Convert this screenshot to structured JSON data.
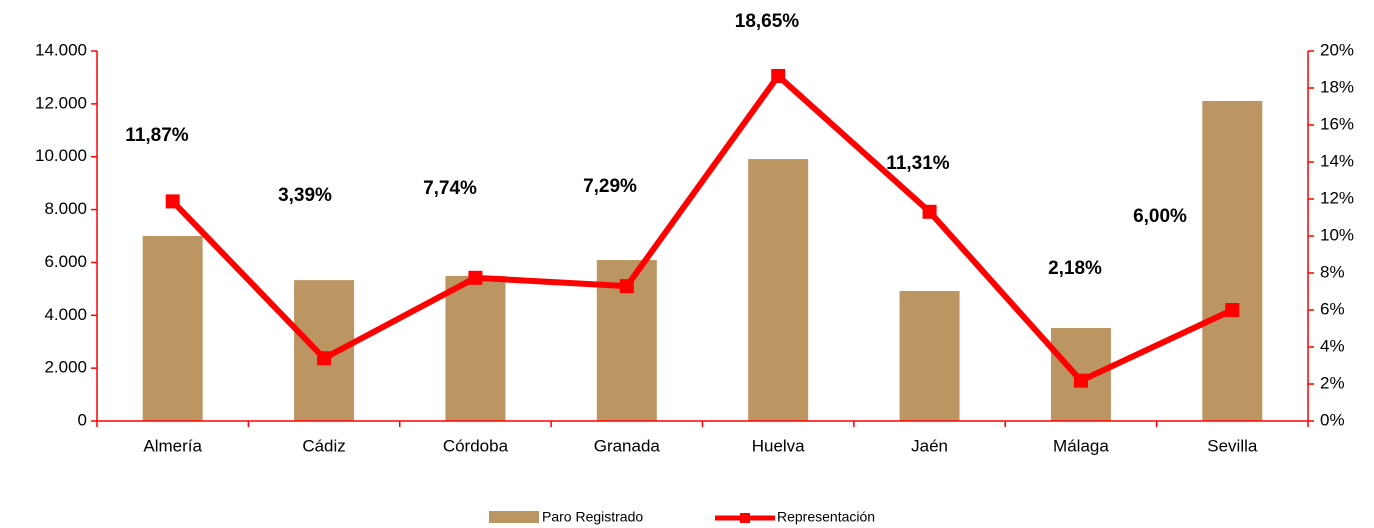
{
  "chart_data": {
    "type": "bar-line",
    "categories": [
      "Almería",
      "Cádiz",
      "Córdoba",
      "Granada",
      "Huelva",
      "Jaén",
      "Málaga",
      "Sevilla"
    ],
    "series": [
      {
        "name": "Paro Registrado",
        "type": "bar",
        "color": "#bb9663",
        "values": [
          7000,
          5330,
          5490,
          6090,
          9910,
          4920,
          3520,
          12110
        ]
      },
      {
        "name": "Representación",
        "type": "line",
        "axis": "y2",
        "color": "#ff0000",
        "values": [
          11.87,
          3.39,
          7.74,
          7.29,
          18.65,
          11.31,
          2.18,
          6.0
        ],
        "value_labels": [
          "11,87%",
          "3,39%",
          "7,74%",
          "7,29%",
          "18,65%",
          "11,31%",
          "2,18%",
          "6,00%"
        ]
      }
    ],
    "ylim": [
      0,
      14000
    ],
    "yticks": [
      0,
      {
        "value": 2000,
        "label": "2.000"
      },
      {
        "value": 4000,
        "label": "4.000"
      },
      {
        "value": 6000,
        "label": "6.000"
      },
      {
        "value": 8000,
        "label": "8.000"
      },
      {
        "value": 10000,
        "label": "10.000"
      },
      {
        "value": 12000,
        "label": "12.000"
      },
      {
        "value": 14000,
        "label": "14.000"
      }
    ],
    "y2lim": [
      0,
      20
    ],
    "y2ticks": [
      {
        "value": 0,
        "label": "0%"
      },
      {
        "value": 2,
        "label": "2%"
      },
      {
        "value": 4,
        "label": "4%"
      },
      {
        "value": 6,
        "label": "6%"
      },
      {
        "value": 8,
        "label": "8%"
      },
      {
        "value": 10,
        "label": "10%"
      },
      {
        "value": 12,
        "label": "12%"
      },
      {
        "value": 14,
        "label": "14%"
      },
      {
        "value": 16,
        "label": "16%"
      },
      {
        "value": 18,
        "label": "18%"
      },
      {
        "value": 20,
        "label": "20%"
      }
    ],
    "legend": "bottom"
  }
}
